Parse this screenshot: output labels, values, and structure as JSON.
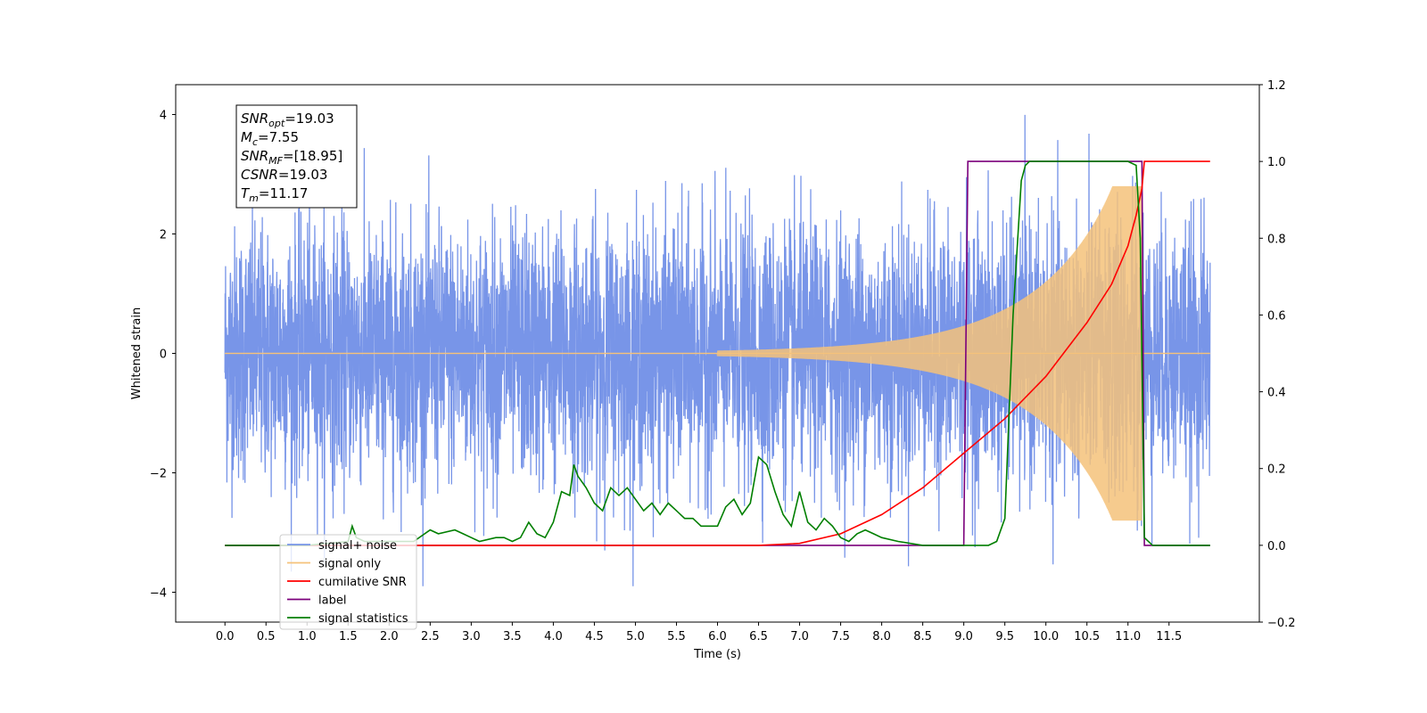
{
  "chart_data": {
    "type": "line",
    "xlabel": "Time (s)",
    "ylabel_left": "Whitened strain",
    "ylabel_right": "",
    "xlim": [
      -0.6,
      12.6
    ],
    "ylim_left": [
      -4.5,
      4.5
    ],
    "ylim_right": [
      -0.2,
      1.2
    ],
    "x_ticks": [
      "0.0",
      "0.5",
      "1.0",
      "1.5",
      "2.0",
      "2.5",
      "3.0",
      "3.5",
      "4.0",
      "4.5",
      "5.0",
      "5.5",
      "6.0",
      "6.5",
      "7.0",
      "7.5",
      "8.0",
      "8.5",
      "9.0",
      "9.5",
      "10.0",
      "10.5",
      "11.0",
      "11.5"
    ],
    "y_ticks_left": [
      "4",
      "2",
      "0",
      "−2",
      "−4"
    ],
    "y_ticks_right": [
      "1.2",
      "1.0",
      "0.8",
      "0.6",
      "0.4",
      "0.2",
      "0.0",
      "−0.2"
    ],
    "grid": false,
    "legend_position": "lower-left",
    "annotation": {
      "lines": [
        {
          "main": "SNR",
          "sub": "opt",
          "value": "=19.03"
        },
        {
          "main": "M",
          "sub": "c",
          "value": "=7.55"
        },
        {
          "main": "SNR",
          "sub": "MF",
          "value": "=[18.95]"
        },
        {
          "main": "CSNR",
          "sub": "",
          "value": "=19.03"
        },
        {
          "main": "T",
          "sub": "m",
          "value": "=11.17"
        }
      ]
    },
    "series": [
      {
        "name": "signal+ noise",
        "axis": "left",
        "color": "#7895e8",
        "description_range": [
          -2.0,
          2.0
        ]
      },
      {
        "name": "signal only",
        "axis": "left",
        "color": "#f5c27a"
      },
      {
        "name": "cumilative SNR",
        "axis": "right",
        "color": "#ff0000",
        "x": [
          0.0,
          6.5,
          7.0,
          7.5,
          8.0,
          8.5,
          9.0,
          9.5,
          10.0,
          10.5,
          10.8,
          11.0,
          11.1,
          11.17,
          11.2,
          12.0
        ],
        "y": [
          0.0,
          0.0,
          0.005,
          0.03,
          0.08,
          0.15,
          0.24,
          0.33,
          0.44,
          0.58,
          0.68,
          0.78,
          0.86,
          0.93,
          1.0,
          1.0
        ]
      },
      {
        "name": "label",
        "axis": "right",
        "color": "#7b007b",
        "x": [
          0.0,
          9.0,
          9.05,
          11.17,
          11.2,
          12.0
        ],
        "y": [
          0.0,
          0.0,
          1.0,
          1.0,
          0.0,
          0.0
        ]
      },
      {
        "name": "signal statistics",
        "axis": "right",
        "color": "#007f00",
        "x": [
          0.0,
          1.0,
          1.5,
          1.55,
          1.6,
          1.7,
          2.0,
          2.3,
          2.5,
          2.6,
          2.8,
          2.9,
          3.0,
          3.1,
          3.3,
          3.4,
          3.5,
          3.6,
          3.7,
          3.8,
          3.9,
          4.0,
          4.1,
          4.2,
          4.25,
          4.3,
          4.4,
          4.5,
          4.6,
          4.7,
          4.8,
          4.9,
          5.0,
          5.1,
          5.2,
          5.3,
          5.4,
          5.5,
          5.6,
          5.7,
          5.8,
          5.9,
          6.0,
          6.1,
          6.2,
          6.3,
          6.4,
          6.5,
          6.6,
          6.7,
          6.8,
          6.9,
          7.0,
          7.1,
          7.2,
          7.3,
          7.4,
          7.5,
          7.6,
          7.7,
          7.8,
          7.9,
          8.0,
          8.2,
          8.5,
          8.8,
          9.0,
          9.3,
          9.4,
          9.5,
          9.6,
          9.7,
          9.75,
          9.8,
          9.9,
          10.0,
          11.0,
          11.1,
          11.15,
          11.2,
          11.3,
          12.0
        ],
        "y": [
          0.0,
          0.0,
          0.01,
          0.05,
          0.02,
          0.01,
          0.01,
          0.01,
          0.04,
          0.03,
          0.04,
          0.03,
          0.02,
          0.01,
          0.02,
          0.02,
          0.01,
          0.02,
          0.06,
          0.03,
          0.02,
          0.06,
          0.14,
          0.13,
          0.21,
          0.18,
          0.15,
          0.11,
          0.09,
          0.15,
          0.13,
          0.15,
          0.12,
          0.09,
          0.11,
          0.08,
          0.11,
          0.09,
          0.07,
          0.07,
          0.05,
          0.05,
          0.05,
          0.1,
          0.12,
          0.08,
          0.11,
          0.23,
          0.21,
          0.14,
          0.08,
          0.05,
          0.14,
          0.06,
          0.04,
          0.07,
          0.05,
          0.02,
          0.01,
          0.03,
          0.04,
          0.03,
          0.02,
          0.01,
          0.0,
          0.0,
          0.0,
          0.0,
          0.01,
          0.07,
          0.6,
          0.95,
          0.99,
          1.0,
          1.0,
          1.0,
          1.0,
          0.99,
          0.8,
          0.02,
          0.0,
          0.0
        ]
      }
    ]
  }
}
